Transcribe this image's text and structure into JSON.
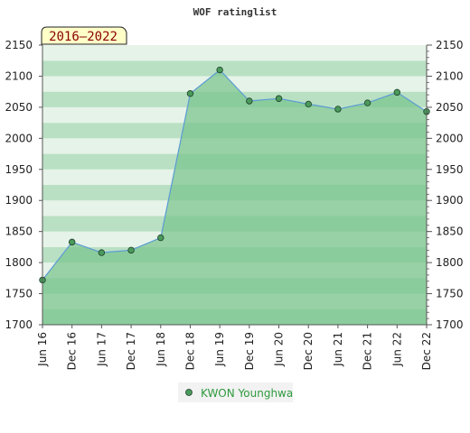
{
  "chart_data": {
    "type": "area",
    "title": "WOF ratinglist",
    "period_label": "2016–2022",
    "x": [
      "Jun 16",
      "Dec 16",
      "Jun 17",
      "Dec 17",
      "Jun 18",
      "Dec 18",
      "Jun 19",
      "Dec 19",
      "Jun 20",
      "Dec 20",
      "Jun 21",
      "Dec 21",
      "Jun 22",
      "Dec 22"
    ],
    "series": [
      {
        "name": "KWON Younghwa",
        "values": [
          1772,
          1833,
          1816,
          1820,
          1840,
          2072,
          2110,
          2060,
          2064,
          2055,
          2047,
          2057,
          2074,
          2043
        ]
      }
    ],
    "ylim": [
      1700,
      2150
    ],
    "yticks": [
      1700,
      1750,
      1800,
      1850,
      1900,
      1950,
      2000,
      2050,
      2100,
      2150
    ],
    "y_axis_sides": "left and right",
    "legend_position": "bottom-center",
    "colors": {
      "line": "#5b9bd5",
      "area": "#7cc58f",
      "marker": "#4a9a5c",
      "band_dark": "#b9e0c3",
      "band_light": "#e6f3e8",
      "legend_text": "#2e9a3e"
    }
  }
}
